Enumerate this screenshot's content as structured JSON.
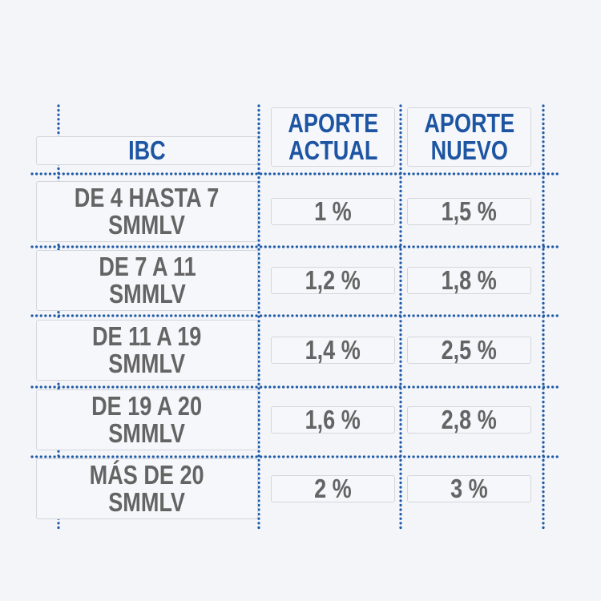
{
  "table": {
    "header": [
      "IBC",
      "APORTE\nACTUAL",
      "APORTE\nNUEVO"
    ],
    "rows": [
      [
        "DE 4 HASTA 7\nSMMLV",
        "1 %",
        "1,5 %"
      ],
      [
        "DE 7 A 11\nSMMLV",
        "1,2 %",
        "1,8 %"
      ],
      [
        "DE 11 A 19\nSMMLV",
        "1,4 %",
        "2,5 %"
      ],
      [
        "DE 19 A 20\nSMMLV",
        "1,6 %",
        "2,8 %"
      ],
      [
        "MÁS DE 20\nSMMLV",
        "2 %",
        "3 %"
      ]
    ]
  }
}
